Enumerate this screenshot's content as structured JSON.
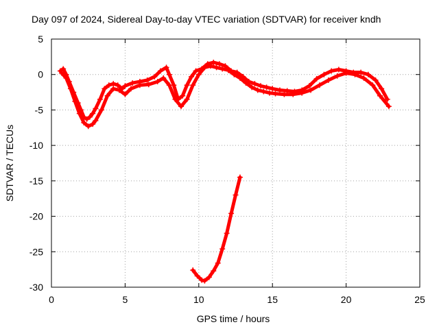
{
  "chart_data": {
    "type": "scatter",
    "title": "Day 097 of 2024, Sidereal Day-to-day VTEC variation (SDTVAR) for receiver kndh",
    "xlabel": "GPS time / hours",
    "ylabel": "SDTVAR / TECUs",
    "xlim": [
      0,
      25
    ],
    "ylim": [
      -30,
      5
    ],
    "xticks": [
      0,
      5,
      10,
      15,
      20,
      25
    ],
    "yticks": [
      5,
      0,
      -5,
      -10,
      -15,
      -20,
      -25,
      -30
    ],
    "xtick_labels": [
      "0",
      "5",
      "10",
      "15",
      "20",
      "25"
    ],
    "ytick_labels": [
      "5",
      "0",
      "-5",
      "-10",
      "-15",
      "-20",
      "-25",
      "-30"
    ],
    "grid": true,
    "marker": "plus",
    "color": "#ff0000",
    "series": [
      {
        "name": "track-a",
        "x": [
          0.6,
          0.8,
          1.0,
          1.2,
          1.5,
          1.8,
          2.0,
          2.2,
          2.4,
          2.6,
          2.8,
          3.0,
          3.3,
          3.6,
          3.9,
          4.2,
          4.5,
          4.8,
          5.0,
          5.5,
          6.0,
          6.5,
          7.0,
          7.4,
          7.8,
          8.0,
          8.3,
          8.6,
          8.9,
          9.2,
          9.5,
          9.8,
          10.2,
          10.6,
          11.0,
          11.4,
          11.8,
          12.2,
          12.6,
          13.0,
          13.4,
          13.8,
          14.2,
          14.6,
          15.0,
          15.5,
          16.0,
          16.5,
          17.0,
          17.5,
          18.0,
          18.5,
          19.0,
          19.5,
          20.0,
          20.5,
          21.0,
          21.5,
          22.0,
          22.4,
          22.8
        ],
        "y": [
          0.5,
          0.8,
          0.0,
          -1.0,
          -2.5,
          -4.0,
          -5.0,
          -6.0,
          -6.3,
          -6.0,
          -5.5,
          -4.8,
          -3.5,
          -2.0,
          -1.5,
          -1.3,
          -1.5,
          -2.0,
          -1.6,
          -1.2,
          -1.0,
          -0.8,
          -0.3,
          0.5,
          1.0,
          0.0,
          -1.5,
          -3.5,
          -3.0,
          -1.5,
          -0.3,
          0.5,
          0.8,
          1.5,
          1.7,
          1.5,
          1.2,
          0.5,
          0.3,
          -0.3,
          -1.0,
          -1.3,
          -1.6,
          -1.8,
          -2.0,
          -2.2,
          -2.3,
          -2.4,
          -2.2,
          -1.6,
          -0.6,
          0.0,
          0.5,
          0.7,
          0.5,
          0.3,
          0.3,
          0.0,
          -0.8,
          -2.0,
          -3.5
        ]
      },
      {
        "name": "track-b",
        "x": [
          0.7,
          1.0,
          1.3,
          1.6,
          1.9,
          2.2,
          2.5,
          2.8,
          3.0,
          3.4,
          3.8,
          4.2,
          4.6,
          5.0,
          5.4,
          6.0,
          6.6,
          7.2,
          7.6,
          8.0,
          8.4,
          8.8,
          9.2,
          9.6,
          10.0,
          10.4,
          10.8,
          11.2,
          11.6,
          12.0,
          12.4,
          12.8,
          13.2,
          13.6,
          14.0,
          14.4,
          14.8,
          15.2,
          15.8,
          16.4,
          17.0,
          17.6,
          18.2,
          18.8,
          19.4,
          20.0,
          20.6,
          21.2,
          21.8,
          22.3,
          22.9
        ],
        "y": [
          0.2,
          -0.5,
          -2.0,
          -3.8,
          -5.5,
          -6.8,
          -7.3,
          -7.0,
          -6.5,
          -5.0,
          -3.0,
          -2.0,
          -2.2,
          -2.8,
          -2.0,
          -1.5,
          -1.4,
          -1.0,
          -0.5,
          -1.5,
          -3.5,
          -4.5,
          -3.5,
          -1.5,
          0.0,
          1.0,
          1.2,
          1.0,
          0.8,
          0.6,
          0.0,
          -0.5,
          -1.2,
          -1.8,
          -2.2,
          -2.4,
          -2.6,
          -2.7,
          -2.8,
          -2.8,
          -2.6,
          -2.2,
          -1.5,
          -0.8,
          -0.2,
          0.2,
          0.0,
          -0.5,
          -1.5,
          -3.0,
          -4.5
        ]
      },
      {
        "name": "track-c",
        "x": [
          9.6,
          9.9,
          10.2,
          10.4,
          10.7,
          11.0,
          11.3,
          11.6,
          11.9,
          12.2,
          12.5,
          12.8
        ],
        "y": [
          -27.6,
          -28.4,
          -29.0,
          -29.1,
          -28.6,
          -27.7,
          -26.6,
          -24.6,
          -22.4,
          -19.6,
          -17.0,
          -14.5
        ]
      }
    ]
  }
}
